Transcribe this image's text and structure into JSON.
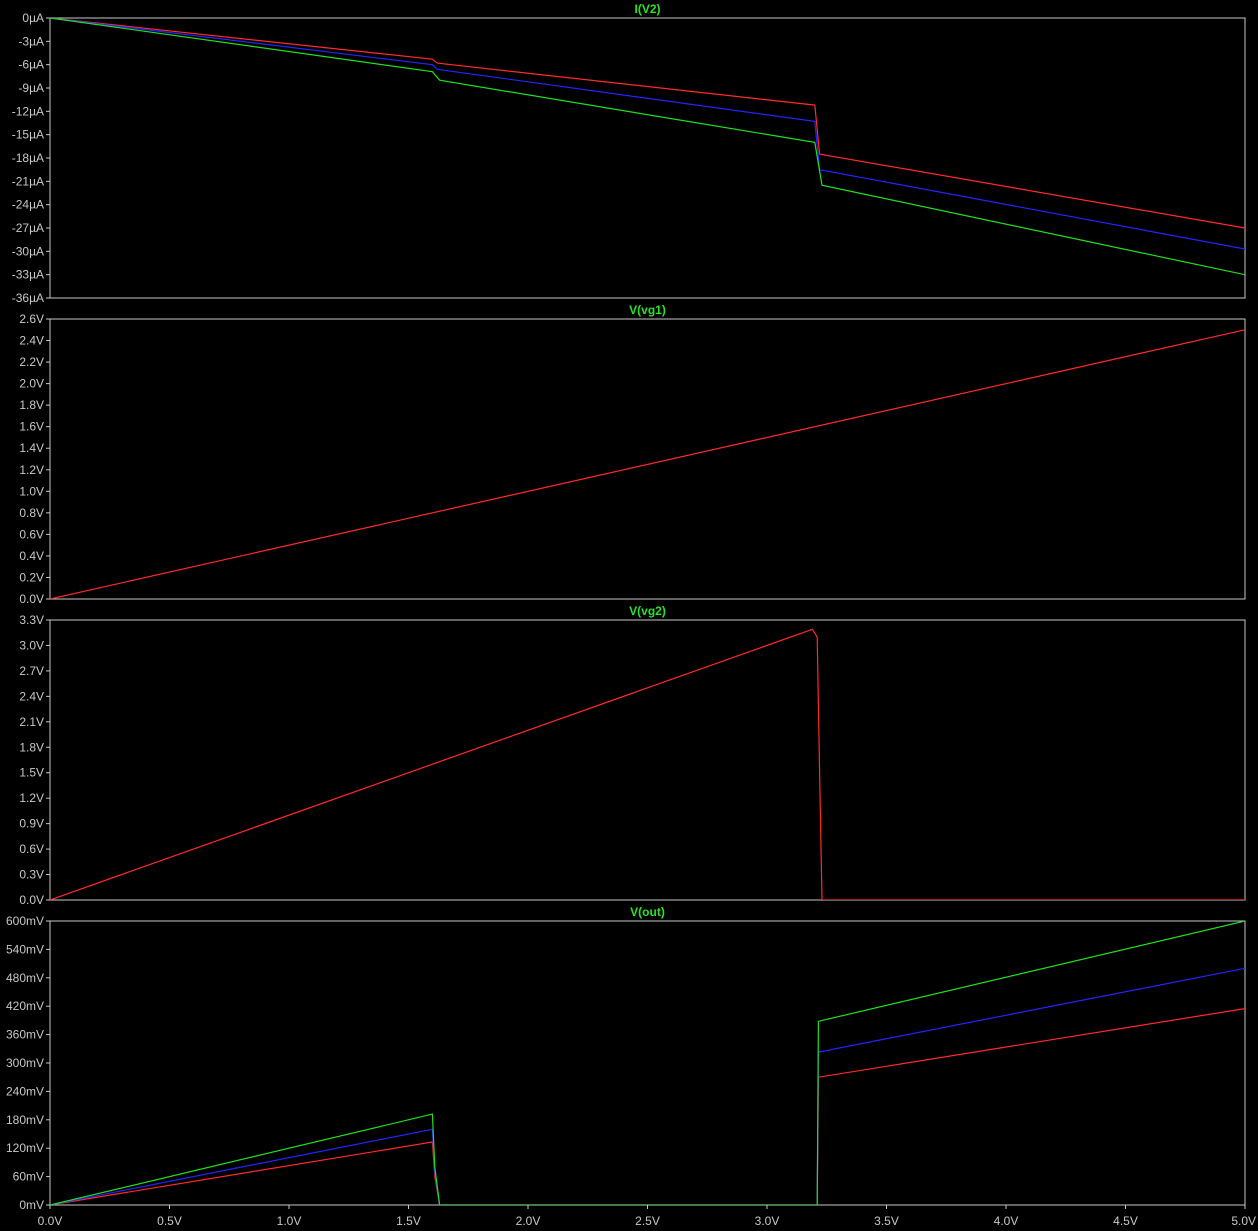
{
  "window": {
    "background": "#000000",
    "frame_color": "#c8c8c8",
    "label_color": "#c8c8c8",
    "title_color": "#27e427"
  },
  "colors": {
    "red": "#ff2a2a",
    "blue": "#2424ff",
    "green": "#20e020"
  },
  "x_axis": {
    "range": [
      0,
      5.0
    ],
    "ticks": [
      "0.0V",
      "0.5V",
      "1.0V",
      "1.5V",
      "2.0V",
      "2.5V",
      "3.0V",
      "3.5V",
      "4.0V",
      "4.5V",
      "5.0V"
    ]
  },
  "chart_data": [
    {
      "type": "line",
      "title": "I(V2)",
      "ylim": [
        -36,
        0
      ],
      "y_ticks": [
        "0µA",
        "-3µA",
        "-6µA",
        "-9µA",
        "-12µA",
        "-15µA",
        "-18µA",
        "-21µA",
        "-24µA",
        "-27µA",
        "-30µA",
        "-33µA",
        "-36µA"
      ],
      "series": [
        {
          "color": "#ff2a2a",
          "x": [
            0,
            1.6,
            1.62,
            3.2,
            3.22,
            5.0
          ],
          "values": [
            0,
            -5.3,
            -5.8,
            -11.2,
            -17.5,
            -27.0
          ]
        },
        {
          "color": "#2424ff",
          "x": [
            0,
            1.6,
            1.62,
            3.2,
            3.22,
            5.0
          ],
          "values": [
            0,
            -6.0,
            -6.6,
            -13.3,
            -19.5,
            -29.7
          ]
        },
        {
          "color": "#20e020",
          "x": [
            0,
            1.6,
            1.63,
            3.2,
            3.23,
            5.0
          ],
          "values": [
            0,
            -6.9,
            -8.0,
            -16.0,
            -21.5,
            -33.0
          ]
        }
      ]
    },
    {
      "type": "line",
      "title": "V(vg1)",
      "ylim": [
        0,
        2.6
      ],
      "y_ticks": [
        "2.6V",
        "2.4V",
        "2.2V",
        "2.0V",
        "1.8V",
        "1.6V",
        "1.4V",
        "1.2V",
        "1.0V",
        "0.8V",
        "0.6V",
        "0.4V",
        "0.2V",
        "0.0V"
      ],
      "series": [
        {
          "color": "#ff2a2a",
          "x": [
            0,
            5.0
          ],
          "values": [
            0,
            2.5
          ]
        }
      ]
    },
    {
      "type": "line",
      "title": "V(vg2)",
      "ylim": [
        0,
        3.3
      ],
      "y_ticks": [
        "3.3V",
        "3.0V",
        "2.7V",
        "2.4V",
        "2.1V",
        "1.8V",
        "1.5V",
        "1.2V",
        "0.9V",
        "0.6V",
        "0.3V",
        "0.0V"
      ],
      "series": [
        {
          "color": "#ff2a2a",
          "x": [
            0,
            3.19,
            3.21,
            3.22,
            3.23,
            5.0
          ],
          "values": [
            0,
            3.19,
            3.1,
            1.5,
            0,
            0
          ]
        }
      ]
    },
    {
      "type": "line",
      "title": "V(out)",
      "ylim": [
        0,
        600
      ],
      "y_ticks": [
        "600mV",
        "540mV",
        "480mV",
        "420mV",
        "360mV",
        "300mV",
        "240mV",
        "180mV",
        "120mV",
        "60mV",
        "0mV"
      ],
      "series": [
        {
          "color": "#ff2a2a",
          "x": [
            0,
            1.6,
            1.61,
            1.63,
            3.21,
            3.215,
            5.0
          ],
          "values": [
            0,
            133,
            60,
            0,
            0,
            270,
            415
          ]
        },
        {
          "color": "#2424ff",
          "x": [
            0,
            1.6,
            1.61,
            1.63,
            3.21,
            3.215,
            5.0
          ],
          "values": [
            0,
            160,
            70,
            0,
            0,
            323,
            500
          ]
        },
        {
          "color": "#20e020",
          "x": [
            0,
            1.6,
            1.61,
            1.63,
            3.21,
            3.215,
            5.0
          ],
          "values": [
            0,
            192,
            80,
            0,
            0,
            388,
            600
          ]
        }
      ]
    }
  ]
}
